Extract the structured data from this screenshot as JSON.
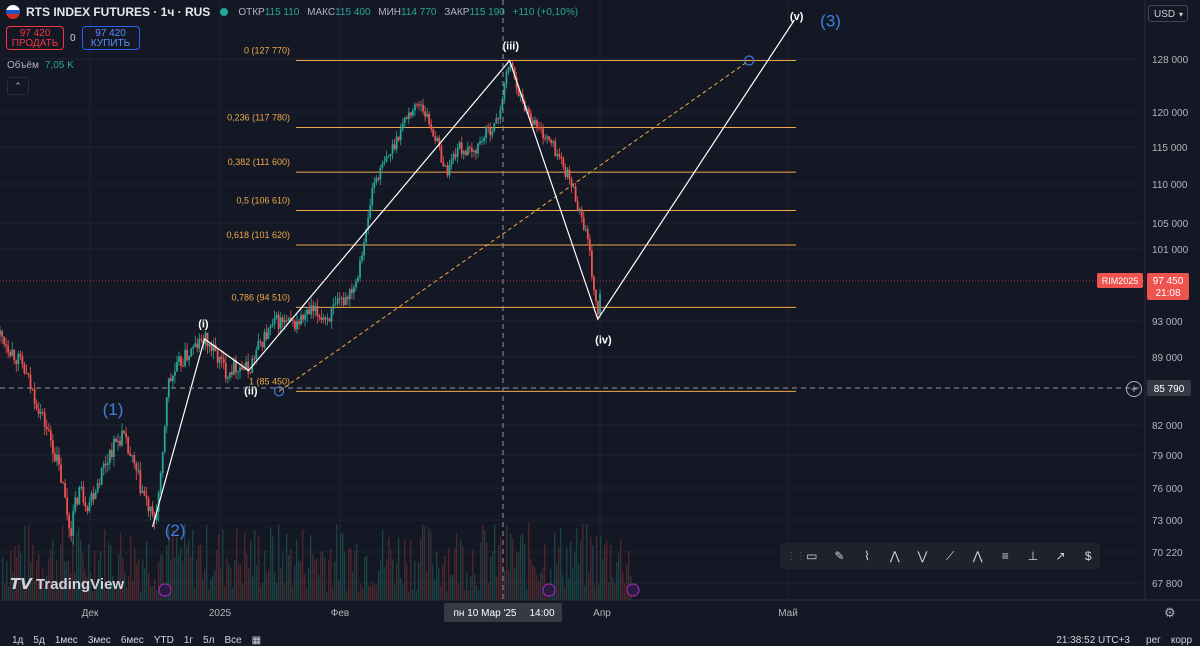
{
  "header": {
    "symbol": "RTS INDEX FUTURES · 1ч · RUS",
    "ohlc": [
      {
        "label": "ОТКР",
        "value": "115 110"
      },
      {
        "label": "МАКС",
        "value": "115 400"
      },
      {
        "label": "МИН",
        "value": "114 770"
      },
      {
        "label": "ЗАКР",
        "value": "115 190"
      },
      {
        "label": "",
        "value": "+110 (+0,10%)"
      }
    ],
    "sell_price": "97 420",
    "sell_label": "ПРОДАТЬ",
    "spread": "0",
    "buy_price": "97 420",
    "buy_label": "КУПИТЬ",
    "volume_label": "Объём",
    "volume_value": "7,05 K",
    "currency": "USD"
  },
  "logo": "TradingView",
  "bottom_bar": {
    "ranges": [
      "1д",
      "5д",
      "1мес",
      "3мес",
      "6мес",
      "YTD",
      "1г",
      "5л",
      "Все"
    ],
    "clock": "21:38:52 UTC+3",
    "options": [
      "рег",
      "корр"
    ]
  },
  "toolbar_icons": [
    "rectangle-icon",
    "brush-icon",
    "path-icon",
    "pattern-icon",
    "abcd-icon",
    "pitchfork-icon",
    "abc-icon",
    "fib-icon",
    "ruler-icon",
    "arrow-icon",
    "price-label-icon"
  ],
  "colors": {
    "up": "#26a69a",
    "down": "#ef5350",
    "fib": "#f0a94a",
    "wave_label": "#3f7fe0",
    "line": "#ffffff",
    "bg": "#141824"
  },
  "chart_data": {
    "type": "candlestick",
    "title": "RTS INDEX FUTURES · 1ч · RUS",
    "y_axis": {
      "ticks": [
        128000,
        120000,
        115000,
        110000,
        105000,
        101000,
        93000,
        89000,
        82000,
        79000,
        76000,
        73000,
        70220,
        67800
      ],
      "range": [
        66000,
        134000
      ]
    },
    "x_axis": {
      "ticks": [
        "Дек",
        "2025",
        "Фев",
        "Апр",
        "Май"
      ],
      "crosshair_label": "пн 10 Мар '25",
      "crosshair_time": "14:00"
    },
    "price_marker": {
      "symbol": "RIM2025",
      "value": "97 450",
      "countdown": "21:08"
    },
    "crosshair_price": "85 790",
    "fib_levels": [
      {
        "label": "0 (127 770)",
        "value": 127770
      },
      {
        "label": "0,236 (117 780)",
        "value": 117780
      },
      {
        "label": "0,382 (111 600)",
        "value": 111600
      },
      {
        "label": "0,5 (106 610)",
        "value": 106610
      },
      {
        "label": "0,618 (101 620)",
        "value": 101620
      },
      {
        "label": "0,786 (94 510)",
        "value": 94510
      },
      {
        "label": "1 (85 450)",
        "value": 85450
      }
    ],
    "wave_labels_major": [
      {
        "label": "(1)",
        "time": 0.1,
        "value": 83000
      },
      {
        "label": "(2)",
        "time": 0.155,
        "value": 71600
      },
      {
        "label": "(3)",
        "time": 0.735,
        "value": 133000
      }
    ],
    "wave_labels_minor": [
      {
        "label": "(i)",
        "time": 0.18,
        "value": 92300
      },
      {
        "label": "(ii)",
        "time": 0.222,
        "value": 85100
      },
      {
        "label": "(iii)",
        "time": 0.452,
        "value": 129500
      },
      {
        "label": "(iv)",
        "time": 0.534,
        "value": 90500
      },
      {
        "label": "(v)",
        "time": 0.705,
        "value": 134000
      }
    ],
    "wave_path": [
      {
        "time": 0.135,
        "value": 72400
      },
      {
        "time": 0.181,
        "value": 91000
      },
      {
        "time": 0.22,
        "value": 87600
      },
      {
        "time": 0.451,
        "value": 127770
      },
      {
        "time": 0.529,
        "value": 93200
      },
      {
        "time": 0.703,
        "value": 135500
      }
    ],
    "projection_line": {
      "from": {
        "time": 0.247,
        "value": 85450
      },
      "to": {
        "time": 0.663,
        "value": 127770
      }
    },
    "price_path": [
      [
        0.0,
        91500
      ],
      [
        0.02,
        88000
      ],
      [
        0.032,
        84500
      ],
      [
        0.045,
        80500
      ],
      [
        0.055,
        76500
      ],
      [
        0.062,
        72000
      ],
      [
        0.07,
        76000
      ],
      [
        0.078,
        74500
      ],
      [
        0.09,
        77500
      ],
      [
        0.098,
        79500
      ],
      [
        0.108,
        81000
      ],
      [
        0.118,
        78000
      ],
      [
        0.13,
        74500
      ],
      [
        0.136,
        72600
      ],
      [
        0.143,
        77000
      ],
      [
        0.148,
        86000
      ],
      [
        0.16,
        88500
      ],
      [
        0.172,
        90000
      ],
      [
        0.181,
        91000
      ],
      [
        0.19,
        89500
      ],
      [
        0.2,
        87500
      ],
      [
        0.21,
        88200
      ],
      [
        0.22,
        87600
      ],
      [
        0.23,
        90500
      ],
      [
        0.245,
        93000
      ],
      [
        0.26,
        92500
      ],
      [
        0.275,
        94000
      ],
      [
        0.29,
        93400
      ],
      [
        0.305,
        95500
      ],
      [
        0.315,
        97500
      ],
      [
        0.324,
        103500
      ],
      [
        0.33,
        110000
      ],
      [
        0.345,
        114000
      ],
      [
        0.36,
        119500
      ],
      [
        0.372,
        121500
      ],
      [
        0.385,
        116500
      ],
      [
        0.395,
        111500
      ],
      [
        0.405,
        115000
      ],
      [
        0.418,
        114000
      ],
      [
        0.43,
        117000
      ],
      [
        0.44,
        118500
      ],
      [
        0.451,
        127770
      ],
      [
        0.462,
        121500
      ],
      [
        0.475,
        118000
      ],
      [
        0.49,
        115000
      ],
      [
        0.5,
        112000
      ],
      [
        0.508,
        109000
      ],
      [
        0.518,
        104000
      ],
      [
        0.523,
        99000
      ],
      [
        0.529,
        93200
      ],
      [
        0.532,
        97450
      ]
    ]
  }
}
